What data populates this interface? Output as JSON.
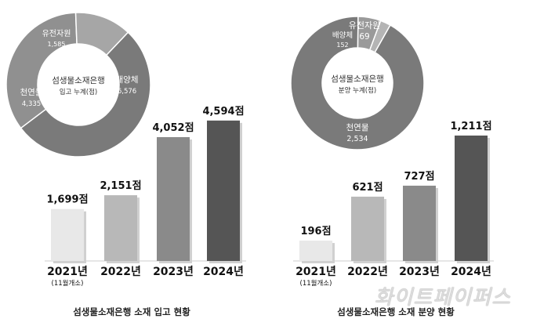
{
  "chart_data": [
    {
      "type": "bar",
      "categories": [
        "2021년",
        "2022년",
        "2023년",
        "2024년"
      ],
      "category_notes": [
        "(11월개소)",
        "",
        "",
        ""
      ],
      "values": [
        1699,
        2151,
        4052,
        4594
      ],
      "value_labels": [
        "1,699점",
        "2,151점",
        "4,052점",
        "4,594점"
      ],
      "colors": [
        "#e8e8e8",
        "#b8b8b8",
        "#8a8a8a",
        "#555555"
      ],
      "ylim": [
        0,
        5000
      ],
      "title": "섬생물소재은행 소재 입고 현황"
    },
    {
      "type": "bar",
      "categories": [
        "2021년",
        "2022년",
        "2023년",
        "2024년"
      ],
      "category_notes": [
        "(11월개소)",
        "",
        "",
        ""
      ],
      "values": [
        196,
        621,
        727,
        1211
      ],
      "value_labels": [
        "196점",
        "621점",
        "727점",
        "1,211점"
      ],
      "colors": [
        "#e8e8e8",
        "#b8b8b8",
        "#8a8a8a",
        "#555555"
      ],
      "ylim": [
        0,
        1400
      ],
      "title": "섬생물소재은행 소재 분양 현황"
    },
    {
      "type": "pie",
      "style": "donut",
      "center_title": "섬생물소재은행",
      "center_subtitle": "입고 누계(점)",
      "slices": [
        {
          "label": "배양체",
          "value": 6576,
          "value_label": "6,576",
          "color": "#7a7a7a"
        },
        {
          "label": "천연물",
          "value": 4335,
          "value_label": "4,335",
          "color": "#909090"
        },
        {
          "label": "유전자원",
          "value": 1585,
          "value_label": "1,585",
          "color": "#a6a6a6"
        }
      ]
    },
    {
      "type": "pie",
      "style": "donut",
      "center_title": "섬생물소재은행",
      "center_subtitle": "분양 누계(점)",
      "slices": [
        {
          "label": "천연물",
          "value": 2534,
          "value_label": "2,534",
          "color": "#7a7a7a"
        },
        {
          "label": "배양체",
          "value": 152,
          "value_label": "152",
          "color": "#9a9a9a"
        },
        {
          "label": "유전자원",
          "value": 69,
          "value_label": "69",
          "color": "#b4b4b4"
        }
      ]
    }
  ],
  "watermark": "화이트페이퍼스"
}
